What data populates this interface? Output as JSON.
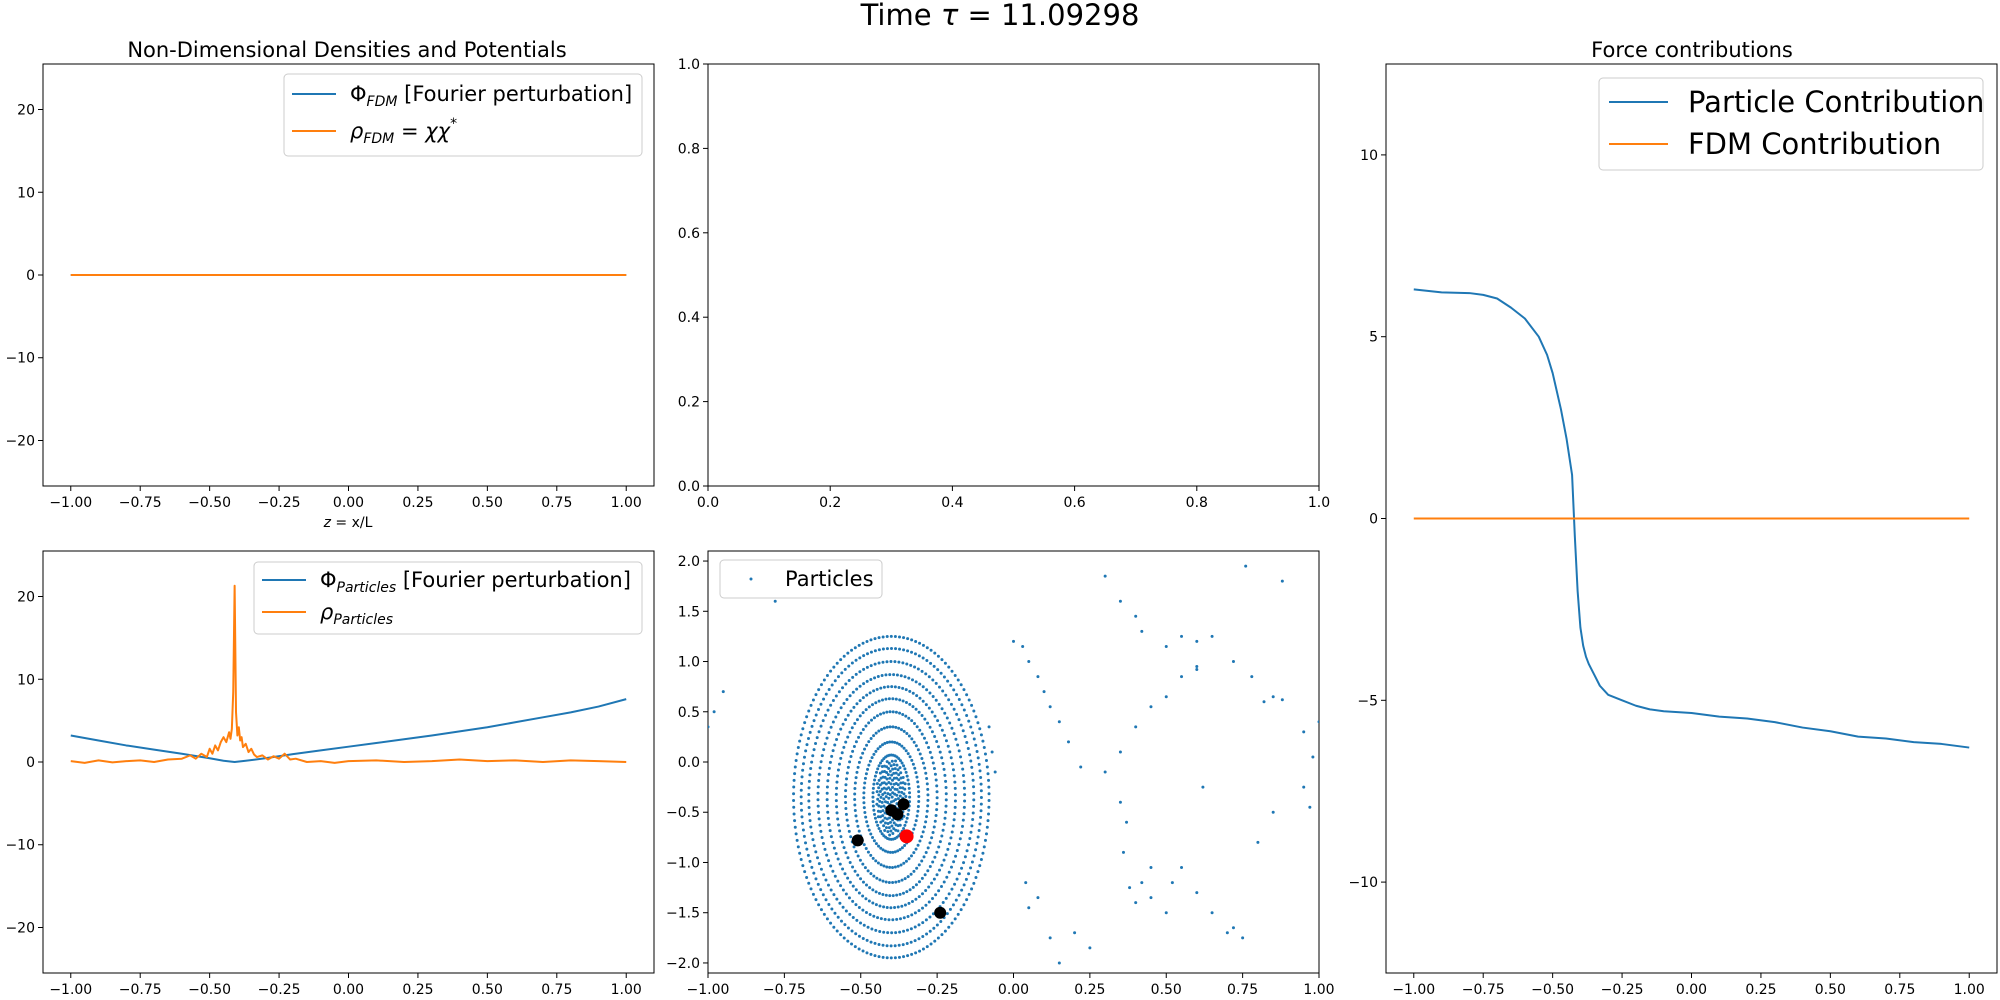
{
  "figure": {
    "title_prefix": "Time ",
    "title_symbol": "τ",
    "title_value": " = 11.09298"
  },
  "colors": {
    "blue": "#1f77b4",
    "orange": "#ff7f0e",
    "red": "#ff0000",
    "black": "#000000"
  },
  "chart_data": [
    {
      "id": "fdm_panel",
      "type": "line",
      "title": "Non-Dimensional Densities and Potentials",
      "xlabel_main": "z",
      "xlabel_rest": " = x/L",
      "xlim": [
        -1.1,
        1.1
      ],
      "ylim": [
        -25.5,
        25.5
      ],
      "xticks": [
        -1.0,
        -0.75,
        -0.5,
        -0.25,
        0.0,
        0.25,
        0.5,
        0.75,
        1.0
      ],
      "xtick_labels": [
        "−1.00",
        "−0.75",
        "−0.50",
        "−0.25",
        "0.00",
        "0.25",
        "0.50",
        "0.75",
        "1.00"
      ],
      "yticks": [
        -20,
        -10,
        0,
        10,
        20
      ],
      "ytick_labels": [
        "−20",
        "−10",
        "0",
        "10",
        "20"
      ],
      "legend_position": "upper right",
      "series": [
        {
          "name_main": "Φ",
          "name_sub": "FDM",
          "name_rest": " [Fourier perturbation]",
          "color": "#1f77b4",
          "x": [
            -1.0,
            1.0
          ],
          "y": [
            0,
            0
          ]
        },
        {
          "name_main": "ρ",
          "name_sub": "FDM",
          "name_rest": " = χχ",
          "name_sup": "*",
          "color": "#ff7f0e",
          "x": [
            -1.0,
            1.0
          ],
          "y": [
            0,
            0
          ]
        }
      ]
    },
    {
      "id": "empty_panel",
      "type": "line",
      "xlim": [
        0,
        1
      ],
      "ylim": [
        0,
        1
      ],
      "xticks": [
        0,
        0.2,
        0.4,
        0.6,
        0.8,
        1.0
      ],
      "xtick_labels": [
        "0.0",
        "0.2",
        "0.4",
        "0.6",
        "0.8",
        "1.0"
      ],
      "yticks": [
        0,
        0.2,
        0.4,
        0.6,
        0.8,
        1.0
      ],
      "ytick_labels": [
        "0.0",
        "0.2",
        "0.4",
        "0.6",
        "0.8",
        "1.0"
      ],
      "series": []
    },
    {
      "id": "particles_panel",
      "type": "line",
      "xlim": [
        -1.1,
        1.1
      ],
      "ylim": [
        -25.5,
        25.5
      ],
      "xticks": [
        -1.0,
        -0.75,
        -0.5,
        -0.25,
        0.0,
        0.25,
        0.5,
        0.75,
        1.0
      ],
      "xtick_labels": [
        "−1.00",
        "−0.75",
        "−0.50",
        "−0.25",
        "0.00",
        "0.25",
        "0.50",
        "0.75",
        "1.00"
      ],
      "yticks": [
        -20,
        -10,
        0,
        10,
        20
      ],
      "ytick_labels": [
        "−20",
        "−10",
        "0",
        "10",
        "20"
      ],
      "legend_position": "upper right",
      "series": [
        {
          "name_main": "Φ",
          "name_sub": "Particles",
          "name_rest": " [Fourier perturbation]",
          "color": "#1f77b4",
          "x": [
            -1.0,
            -0.9,
            -0.8,
            -0.7,
            -0.6,
            -0.5,
            -0.45,
            -0.41,
            -0.37,
            -0.3,
            -0.2,
            -0.1,
            0.0,
            0.1,
            0.2,
            0.3,
            0.4,
            0.5,
            0.6,
            0.7,
            0.8,
            0.9,
            1.0
          ],
          "y": [
            3.2,
            2.6,
            2.0,
            1.5,
            1.0,
            0.45,
            0.15,
            0.0,
            0.15,
            0.45,
            0.95,
            1.4,
            1.85,
            2.3,
            2.75,
            3.2,
            3.7,
            4.2,
            4.8,
            5.4,
            6.0,
            6.7,
            7.6
          ]
        },
        {
          "name_main": "ρ",
          "name_sub": "Particles",
          "name_rest": "",
          "color": "#ff7f0e",
          "x": [
            -1.0,
            -0.95,
            -0.9,
            -0.85,
            -0.8,
            -0.75,
            -0.7,
            -0.65,
            -0.6,
            -0.57,
            -0.55,
            -0.53,
            -0.51,
            -0.5,
            -0.49,
            -0.48,
            -0.47,
            -0.46,
            -0.45,
            -0.44,
            -0.43,
            -0.425,
            -0.42,
            -0.415,
            -0.41,
            -0.405,
            -0.4,
            -0.395,
            -0.39,
            -0.385,
            -0.38,
            -0.37,
            -0.36,
            -0.35,
            -0.34,
            -0.33,
            -0.31,
            -0.29,
            -0.27,
            -0.25,
            -0.23,
            -0.21,
            -0.19,
            -0.15,
            -0.1,
            -0.05,
            0.0,
            0.1,
            0.2,
            0.3,
            0.4,
            0.5,
            0.6,
            0.7,
            0.8,
            0.9,
            1.0
          ],
          "y": [
            0.1,
            -0.1,
            0.2,
            -0.05,
            0.1,
            0.2,
            0.0,
            0.3,
            0.4,
            0.8,
            0.4,
            1.0,
            0.6,
            1.6,
            1.0,
            2.0,
            1.4,
            2.4,
            3.0,
            2.4,
            3.6,
            2.8,
            4.0,
            8.5,
            21.3,
            6.0,
            3.2,
            4.2,
            2.6,
            3.0,
            1.8,
            2.2,
            1.2,
            1.6,
            0.9,
            0.6,
            0.8,
            0.3,
            0.7,
            0.4,
            1.0,
            0.3,
            0.4,
            0.0,
            0.1,
            -0.1,
            0.1,
            0.2,
            0.0,
            0.1,
            0.3,
            0.1,
            0.2,
            0.0,
            0.2,
            0.1,
            0.0
          ]
        }
      ]
    },
    {
      "id": "phase_space_panel",
      "type": "scatter",
      "xlim": [
        -1.0,
        1.0
      ],
      "ylim": [
        -2.1,
        2.1
      ],
      "xticks": [
        -1.0,
        -0.75,
        -0.5,
        -0.25,
        0.0,
        0.25,
        0.5,
        0.75,
        1.0
      ],
      "xtick_labels": [
        "−1.00",
        "−0.75",
        "−0.50",
        "−0.25",
        "0.00",
        "0.25",
        "0.50",
        "0.75",
        "1.00"
      ],
      "yticks": [
        -2.0,
        -1.5,
        -1.0,
        -0.5,
        0.0,
        0.5,
        1.0,
        1.5,
        2.0
      ],
      "ytick_labels": [
        "−2.0",
        "−1.5",
        "−1.0",
        "−0.5",
        "0.0",
        "0.5",
        "1.0",
        "1.5",
        "2.0"
      ],
      "legend_position": "upper left",
      "particles_label": "Particles",
      "particles_color": "#1f77b4",
      "phase_center": [
        -0.4,
        -0.35
      ],
      "ellipse_radii_x": [
        0.06,
        0.09,
        0.12,
        0.15,
        0.18,
        0.21,
        0.24,
        0.27,
        0.295,
        0.32
      ],
      "ellipse_radii_y": [
        0.42,
        0.55,
        0.7,
        0.85,
        0.98,
        1.1,
        1.22,
        1.35,
        1.48,
        1.6
      ],
      "scattered_points": [
        [
          0.03,
          1.15
        ],
        [
          0.05,
          1.0
        ],
        [
          0.08,
          0.85
        ],
        [
          0.1,
          0.7
        ],
        [
          0.12,
          0.55
        ],
        [
          0.15,
          0.4
        ],
        [
          0.18,
          0.2
        ],
        [
          0.22,
          -0.05
        ],
        [
          0.3,
          1.85
        ],
        [
          0.35,
          1.6
        ],
        [
          0.4,
          1.45
        ],
        [
          0.42,
          1.3
        ],
        [
          0.5,
          1.15
        ],
        [
          0.55,
          1.25
        ],
        [
          0.6,
          1.2
        ],
        [
          0.65,
          1.25
        ],
        [
          0.72,
          1.0
        ],
        [
          0.78,
          0.85
        ],
        [
          0.82,
          0.6
        ],
        [
          0.85,
          0.65
        ],
        [
          0.88,
          0.62
        ],
        [
          0.95,
          0.3
        ],
        [
          0.98,
          0.05
        ],
        [
          1.0,
          0.4
        ],
        [
          0.76,
          1.95
        ],
        [
          0.88,
          1.8
        ],
        [
          0.6,
          0.92
        ],
        [
          0.55,
          0.85
        ],
        [
          0.5,
          0.65
        ],
        [
          0.45,
          0.55
        ],
        [
          0.4,
          0.35
        ],
        [
          0.35,
          0.1
        ],
        [
          0.3,
          -0.1
        ],
        [
          0.35,
          -0.4
        ],
        [
          0.37,
          -0.6
        ],
        [
          0.36,
          -0.9
        ],
        [
          0.45,
          -1.05
        ],
        [
          0.52,
          -1.2
        ],
        [
          0.55,
          -1.05
        ],
        [
          0.6,
          -1.3
        ],
        [
          0.65,
          -1.5
        ],
        [
          0.7,
          -1.7
        ],
        [
          0.72,
          -1.65
        ],
        [
          0.75,
          -1.75
        ],
        [
          0.8,
          -0.8
        ],
        [
          0.85,
          -0.5
        ],
        [
          0.5,
          -1.5
        ],
        [
          0.45,
          -1.35
        ],
        [
          0.4,
          -1.4
        ],
        [
          0.42,
          -1.2
        ],
        [
          0.38,
          -1.25
        ],
        [
          0.25,
          -1.85
        ],
        [
          0.2,
          -1.7
        ],
        [
          0.15,
          -2.0
        ],
        [
          0.12,
          -1.75
        ],
        [
          0.08,
          -1.35
        ],
        [
          0.05,
          -1.45
        ],
        [
          0.04,
          -1.2
        ],
        [
          -0.95,
          0.7
        ],
        [
          -0.98,
          0.5
        ],
        [
          -1.0,
          0.35
        ],
        [
          -0.78,
          1.6
        ],
        [
          -0.07,
          0.1
        ],
        [
          -0.06,
          -0.1
        ],
        [
          -0.08,
          0.35
        ],
        [
          0.0,
          1.2
        ],
        [
          0.6,
          0.95
        ],
        [
          0.62,
          -0.25
        ],
        [
          0.95,
          -0.25
        ],
        [
          0.97,
          -0.45
        ]
      ],
      "black_markers": [
        [
          -0.4,
          -0.48
        ],
        [
          -0.38,
          -0.52
        ],
        [
          -0.36,
          -0.42
        ],
        [
          -0.51,
          -0.78
        ],
        [
          -0.24,
          -1.5
        ]
      ],
      "red_marker": [
        -0.35,
        -0.74
      ]
    },
    {
      "id": "force_panel",
      "type": "line",
      "title": "Force contributions",
      "xlim": [
        -1.1,
        1.1
      ],
      "ylim": [
        -12.5,
        12.5
      ],
      "xticks": [
        -1.0,
        -0.75,
        -0.5,
        -0.25,
        0.0,
        0.25,
        0.5,
        0.75,
        1.0
      ],
      "xtick_labels": [
        "−1.00",
        "−0.75",
        "−0.50",
        "−0.25",
        "0.00",
        "0.25",
        "0.50",
        "0.75",
        "1.00"
      ],
      "yticks": [
        -10,
        -5,
        0,
        5,
        10
      ],
      "ytick_labels": [
        "−10",
        "−5",
        "0",
        "5",
        "10"
      ],
      "legend_position": "upper right",
      "series": [
        {
          "name": "Particle Contribution",
          "color": "#1f77b4",
          "x": [
            -1.0,
            -0.9,
            -0.8,
            -0.75,
            -0.7,
            -0.65,
            -0.6,
            -0.55,
            -0.52,
            -0.5,
            -0.47,
            -0.45,
            -0.43,
            -0.42,
            -0.41,
            -0.4,
            -0.39,
            -0.38,
            -0.37,
            -0.35,
            -0.33,
            -0.3,
            -0.25,
            -0.2,
            -0.15,
            -0.1,
            0.0,
            0.1,
            0.2,
            0.3,
            0.4,
            0.5,
            0.6,
            0.7,
            0.8,
            0.9,
            1.0
          ],
          "y": [
            6.3,
            6.22,
            6.2,
            6.15,
            6.05,
            5.8,
            5.5,
            5.0,
            4.5,
            4.0,
            3.0,
            2.2,
            1.2,
            -0.5,
            -2.0,
            -3.0,
            -3.5,
            -3.8,
            -4.0,
            -4.3,
            -4.6,
            -4.85,
            -5.0,
            -5.15,
            -5.25,
            -5.3,
            -5.35,
            -5.45,
            -5.5,
            -5.6,
            -5.75,
            -5.85,
            -6.0,
            -6.05,
            -6.15,
            -6.2,
            -6.3
          ]
        },
        {
          "name": "FDM Contribution",
          "color": "#ff7f0e",
          "x": [
            -1.0,
            1.0
          ],
          "y": [
            0,
            0
          ]
        }
      ]
    }
  ]
}
